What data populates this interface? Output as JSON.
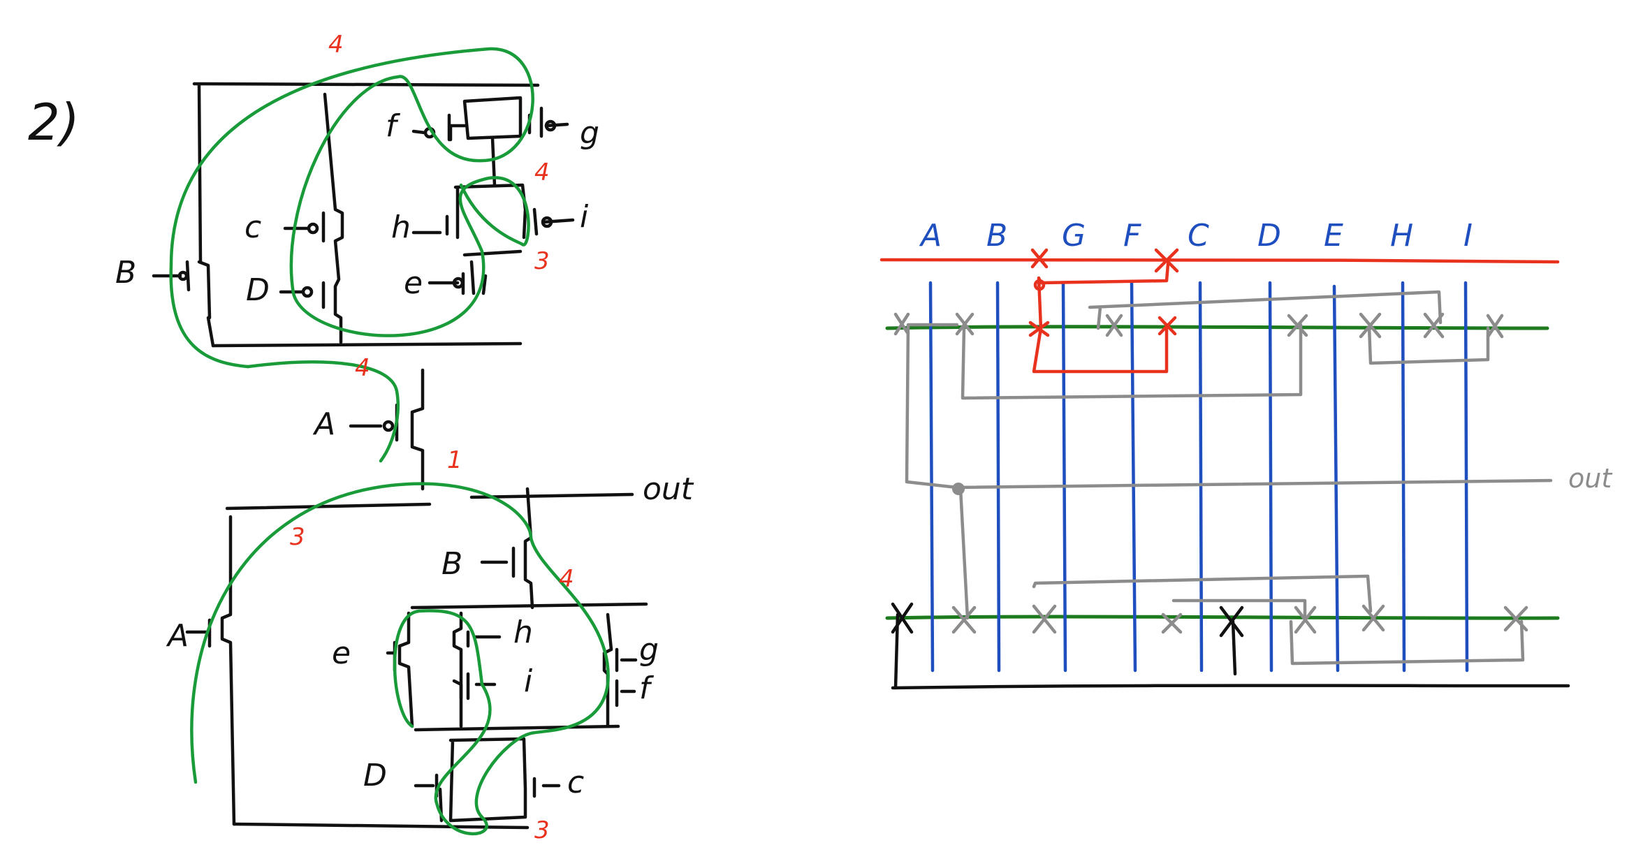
{
  "problem": {
    "number": "2)"
  },
  "colors": {
    "wire": "#111111",
    "euler_path": "#1a9b3a",
    "annotation": "#e8321e",
    "column_label": "#1f4fbf",
    "diffusion_line": "#1e7a1e",
    "routing": "#8c8c8c"
  },
  "pullup": {
    "gate_labels": {
      "B": "B",
      "C": "c",
      "D": "D",
      "F": "f",
      "G": "g",
      "H": "h",
      "I": "i",
      "E": "e",
      "A": "A"
    },
    "counts": {
      "top": "4",
      "mid": "4",
      "right": "3",
      "bottom": "4"
    }
  },
  "pulldown": {
    "gate_labels": {
      "A": "A",
      "B": "B",
      "E": "e",
      "H": "h",
      "I": "i",
      "G": "g",
      "F": "f",
      "D": "D",
      "C": "c"
    },
    "counts": {
      "a_link": "1",
      "left": "3",
      "right": "4",
      "bottom": "3"
    },
    "output": "out"
  },
  "stick_diagram": {
    "columns": [
      "A",
      "B",
      "G",
      "F",
      "C",
      "D",
      "E",
      "H",
      "I"
    ],
    "output": "out"
  }
}
